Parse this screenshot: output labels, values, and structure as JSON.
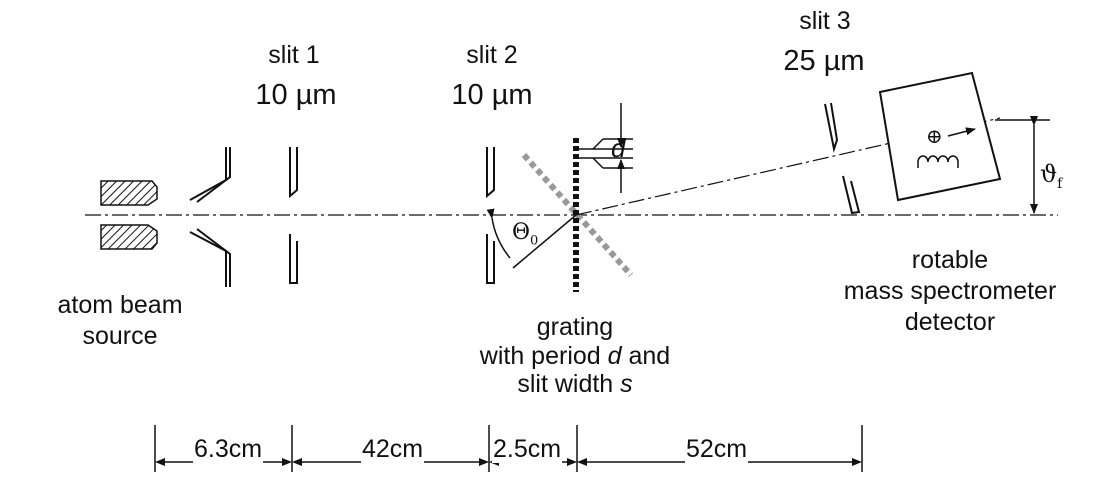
{
  "slits": [
    {
      "name": "slit 1",
      "width": "10 µm"
    },
    {
      "name": "slit 2",
      "width": "10 µm"
    },
    {
      "name": "slit 3",
      "width": "25 µm"
    }
  ],
  "source": {
    "line1": "atom beam",
    "line2": "source"
  },
  "grating": {
    "line1": "grating",
    "line2a": "with period ",
    "line2b": "d",
    "line2c": " and",
    "line3a": "slit width ",
    "line3b": "s"
  },
  "detector": {
    "line1": "rotable",
    "line2": "mass spectrometer",
    "line3": "detector"
  },
  "symbols": {
    "period": "d",
    "theta0": "Θ",
    "theta0_sub": "0",
    "thetaf": "ϑ",
    "thetaf_sub": "f",
    "ion": "⊕"
  },
  "distances": [
    "6.3cm",
    "42cm",
    "2.5cm",
    "52cm"
  ]
}
